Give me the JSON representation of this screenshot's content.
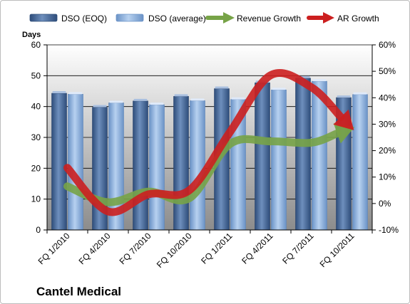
{
  "chart_data": {
    "type": "bar",
    "title": "Cantel Medical",
    "ylabel": "Days",
    "categories": [
      "FQ 1/2010",
      "FQ 4/2010",
      "FQ 7/2010",
      "FQ 10/2010",
      "FQ 1/2011",
      "FQ 4/2011",
      "FQ 7/2011",
      "FQ 10/2011"
    ],
    "ylim": [
      0,
      60
    ],
    "yticks": [
      0,
      10,
      20,
      30,
      40,
      50,
      60
    ],
    "y2lim": [
      -10,
      60
    ],
    "y2ticks": [
      "-10%",
      "0%",
      "10%",
      "20%",
      "30%",
      "40%",
      "50%",
      "60%"
    ],
    "y2values": [
      -10,
      0,
      10,
      20,
      30,
      40,
      50,
      60
    ],
    "grid": true,
    "legend_position": "top",
    "series": [
      {
        "name": "DSO (EOQ)",
        "type": "bar",
        "axis": "left",
        "color": "#4f6f9f",
        "values": [
          44.3,
          39.8,
          41.8,
          43.3,
          45.8,
          47.7,
          49.2,
          42.9
        ]
      },
      {
        "name": "DSO (average)",
        "type": "bar",
        "axis": "left",
        "color": "#8eb4e3",
        "values": [
          44.0,
          41.2,
          40.6,
          41.9,
          42.3,
          45.4,
          48.2,
          43.9
        ]
      },
      {
        "name": "Revenue Growth",
        "type": "line",
        "axis": "right",
        "unit": "%",
        "color": "#77a347",
        "values": [
          6.5,
          0.5,
          4.5,
          2.0,
          22.5,
          23.5,
          23.0,
          28.5
        ]
      },
      {
        "name": "AR Growth",
        "type": "line",
        "axis": "right",
        "unit": "%",
        "color": "#cc1f1f",
        "values": [
          13.5,
          -3.0,
          3.5,
          5.0,
          27.0,
          48.5,
          44.0,
          28.5
        ]
      }
    ]
  },
  "colors": {
    "plot_gradient_top": "#ffffff",
    "plot_gradient_bottom": "#8c8c8c",
    "gridline": "#000000",
    "frame": "#bdbdbd"
  }
}
